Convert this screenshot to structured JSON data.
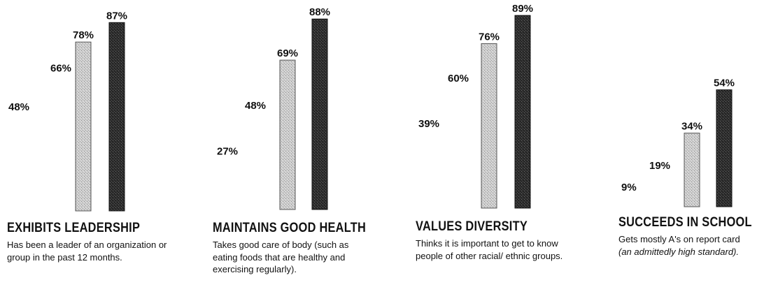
{
  "chart_data": [
    {
      "type": "bar",
      "title": "EXHIBITS LEADERSHIP",
      "subtitle": "Has been a leader of an organization or group in the past 12 months.",
      "values": [
        48,
        66,
        78,
        87
      ],
      "value_labels": [
        "48%",
        "66%",
        "78%",
        "87%"
      ],
      "ylim": [
        0,
        100
      ],
      "bar_styles": [
        "none",
        "none",
        "light",
        "dark"
      ]
    },
    {
      "type": "bar",
      "title": "MAINTAINS GOOD HEALTH",
      "subtitle": "Takes good care of body (such as eating foods that are healthy and exercising regularly).",
      "values": [
        27,
        48,
        69,
        88
      ],
      "value_labels": [
        "27%",
        "48%",
        "69%",
        "88%"
      ],
      "ylim": [
        0,
        100
      ],
      "bar_styles": [
        "none",
        "none",
        "light",
        "dark"
      ]
    },
    {
      "type": "bar",
      "title": "VALUES DIVERSITY",
      "subtitle": "Thinks it is important to get to know people of other racial/ ethnic groups.",
      "values": [
        39,
        60,
        76,
        89
      ],
      "value_labels": [
        "39%",
        "60%",
        "76%",
        "89%"
      ],
      "ylim": [
        0,
        100
      ],
      "bar_styles": [
        "none",
        "none",
        "light",
        "dark"
      ]
    },
    {
      "type": "bar",
      "title": "SUCCEEDS IN SCHOOL",
      "subtitle": "Gets mostly A's on report card",
      "subtitle_note": "(an admittedly high standard).",
      "values": [
        9,
        19,
        34,
        54
      ],
      "value_labels": [
        "9%",
        "19%",
        "34%",
        "54%"
      ],
      "ylim": [
        0,
        100
      ],
      "bar_styles": [
        "none",
        "none",
        "light",
        "dark"
      ]
    }
  ],
  "colors": {
    "light_bar": "#c9c9c9",
    "dark_bar": "#2a2a2a",
    "text": "#111111"
  }
}
